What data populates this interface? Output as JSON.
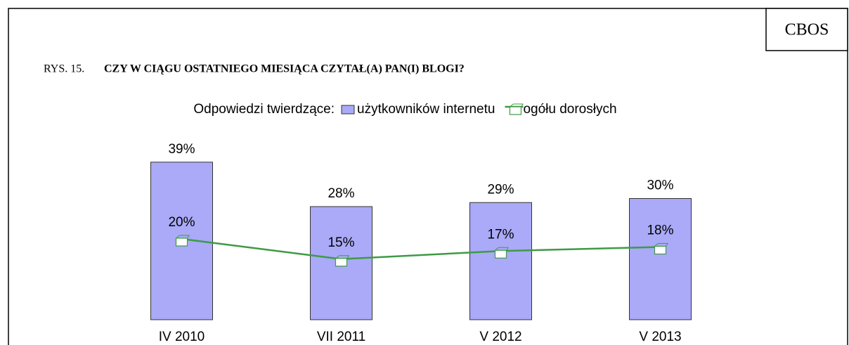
{
  "badge": "CBOS",
  "chart_data": {
    "type": "bar",
    "figure_label": "RYS. 15.",
    "title": "CZY W CIĄGU OSTATNIEGO MIESIĄCA CZYTAŁ(A) PAN(I) BLOGI?",
    "legend_title": "Odpowiedzi twierdzące:",
    "categories": [
      "IV 2010",
      "VII 2011",
      "V 2012",
      "V 2013"
    ],
    "series": [
      {
        "name": "użytkowników internetu",
        "type": "bar",
        "color": "#aaaaf8",
        "values": [
          39,
          28,
          29,
          30
        ],
        "value_labels": [
          "39%",
          "28%",
          "29%",
          "30%"
        ]
      },
      {
        "name": "ogółu dorosłych",
        "type": "line",
        "color": "#3f9a45",
        "values": [
          20,
          15,
          17,
          18
        ],
        "value_labels": [
          "20%",
          "15%",
          "17%",
          "18%"
        ]
      }
    ],
    "legend": "top"
  }
}
